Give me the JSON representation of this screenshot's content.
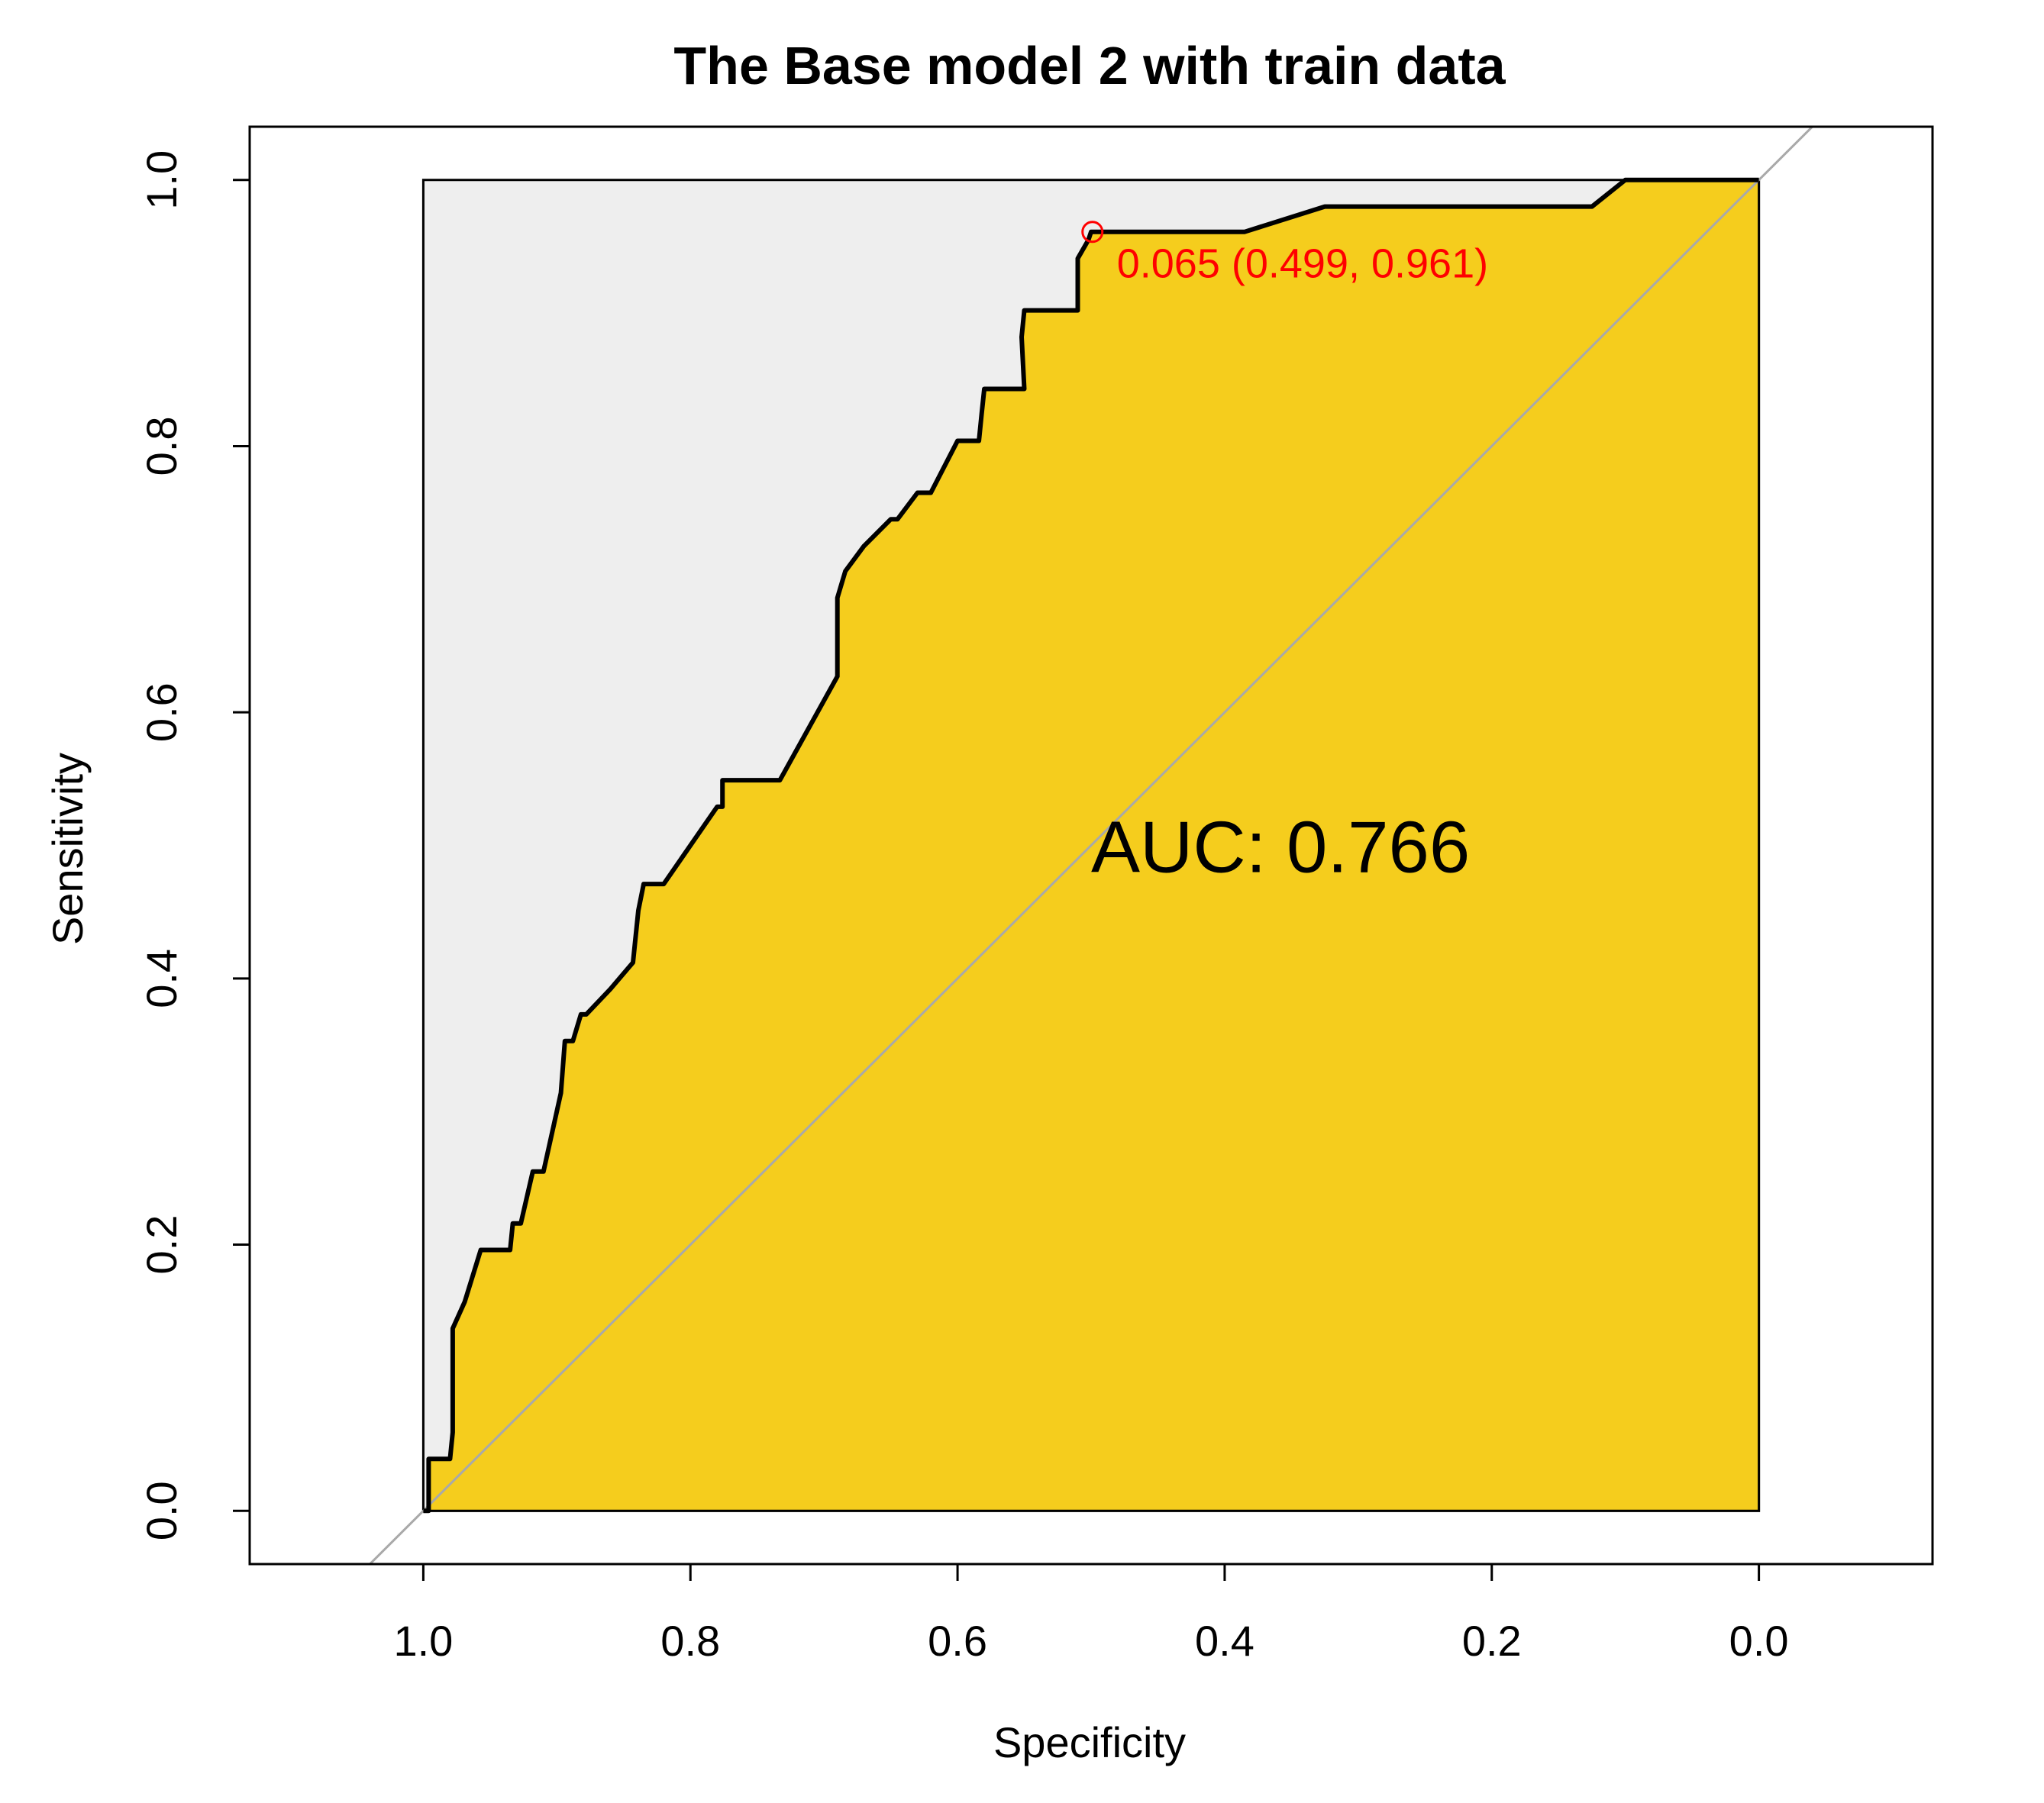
{
  "chart_data": {
    "type": "line",
    "title": "The Base model 2 with train data",
    "xlabel": "Specificity",
    "ylabel": "Sensitivity",
    "x_axis_reversed": true,
    "xlim": [
      1.13,
      -0.13
    ],
    "ylim": [
      -0.04,
      1.04
    ],
    "x_ticks": [
      "1.0",
      "0.8",
      "0.6",
      "0.4",
      "0.2",
      "0.0"
    ],
    "y_ticks": [
      "0.0",
      "0.2",
      "0.4",
      "0.6",
      "0.8",
      "1.0"
    ],
    "grid": false,
    "auc_polygon_fill": "#F5CD1D",
    "background_fill": "#EEEEEE",
    "curve_color": "#000000",
    "diagonal_color": "#A9A9A9",
    "best_point_color": "#FF0000",
    "auc_label": "AUC: 0.766",
    "best_threshold_label": "0.065 (0.499, 0.961)",
    "best_threshold": {
      "specificity": 0.499,
      "sensitivity": 0.961
    },
    "series": [
      {
        "specificity": [
          1.0,
          0.996,
          0.996,
          0.98,
          0.978,
          0.978,
          0.969,
          0.957,
          0.935,
          0.933,
          0.927,
          0.918,
          0.91,
          0.897,
          0.894,
          0.888,
          0.882,
          0.878,
          0.86,
          0.843,
          0.839,
          0.835,
          0.82,
          0.78,
          0.776,
          0.776,
          0.733,
          0.69,
          0.69,
          0.684,
          0.67,
          0.66,
          0.65,
          0.645,
          0.63,
          0.62,
          0.6,
          0.584,
          0.582,
          0.58,
          0.55,
          0.552,
          0.55,
          0.51,
          0.51,
          0.502,
          0.5,
          0.496,
          0.385,
          0.325,
          0.125,
          0.1,
          0.0
        ],
        "sensitivity": [
          0.0,
          0.0,
          0.039,
          0.039,
          0.059,
          0.137,
          0.157,
          0.196,
          0.196,
          0.216,
          0.216,
          0.255,
          0.255,
          0.314,
          0.353,
          0.353,
          0.373,
          0.373,
          0.392,
          0.412,
          0.451,
          0.471,
          0.471,
          0.529,
          0.529,
          0.549,
          0.549,
          0.627,
          0.686,
          0.706,
          0.725,
          0.735,
          0.745,
          0.745,
          0.765,
          0.765,
          0.804,
          0.804,
          0.824,
          0.843,
          0.843,
          0.882,
          0.902,
          0.902,
          0.941,
          0.955,
          0.961,
          0.961,
          0.961,
          0.98,
          0.98,
          1.0,
          1.0
        ]
      }
    ]
  }
}
